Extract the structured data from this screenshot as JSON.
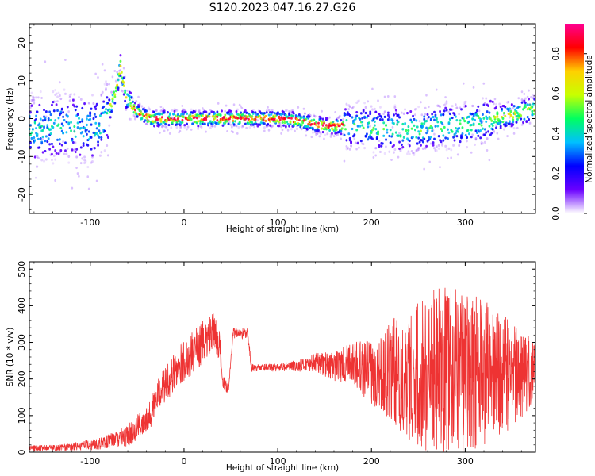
{
  "figure": {
    "title": "S120.2023.047.16.27.G26"
  },
  "chart_data": [
    {
      "type": "heatmap",
      "panel": "spectrogram",
      "xlabel": "Height of straight line (km)",
      "ylabel": "Frequency (Hz)",
      "xlim": [
        -165,
        375
      ],
      "ylim": [
        -25,
        25
      ],
      "xticks": [
        -100,
        0,
        100,
        200,
        300
      ],
      "yticks": [
        -20,
        -10,
        0,
        10,
        20
      ],
      "colorbar": {
        "label": "Normalized spectral amplitude",
        "range": [
          0.0,
          0.95
        ],
        "ticks": [
          0.0,
          0.2,
          0.4,
          0.6,
          0.8
        ],
        "colormap": [
          "#ffffff",
          "#6a00ff",
          "#0000ff",
          "#00c0ff",
          "#00ff60",
          "#c8ff00",
          "#ffd000",
          "#ff0000",
          "#ff0090"
        ]
      },
      "ridge": {
        "x": [
          -165,
          -140,
          -120,
          -100,
          -90,
          -80,
          -72,
          -68,
          -62,
          -55,
          -45,
          -35,
          -25,
          0,
          50,
          100,
          120,
          140,
          160,
          175,
          190,
          210,
          230,
          250,
          270,
          290,
          310,
          330,
          350,
          365,
          375
        ],
        "y": [
          -3,
          -2,
          -2,
          -3,
          -2,
          2,
          8,
          14,
          6,
          3,
          1,
          0,
          0,
          0,
          0,
          0,
          -0.5,
          -1.5,
          -2,
          -2,
          -2,
          -3,
          -3,
          -3,
          -2,
          -2,
          -1,
          0,
          1,
          2,
          2.5
        ]
      }
    },
    {
      "type": "line",
      "panel": "snr",
      "xlabel": "Height of straight line (km)",
      "ylabel": "SNR (10 * v/v)",
      "xlim": [
        -165,
        375
      ],
      "ylim": [
        0,
        520
      ],
      "xticks": [
        -100,
        0,
        100,
        200,
        300
      ],
      "yticks": [
        0,
        100,
        200,
        300,
        400,
        500
      ],
      "color": "#ee3333",
      "series": [
        {
          "x": [
            -165,
            -140,
            -120,
            -100,
            -80,
            -60,
            -45,
            -35,
            -25,
            -15,
            -5,
            5,
            15,
            25,
            32,
            38,
            42,
            46,
            48,
            52,
            60,
            68,
            72,
            80,
            100,
            120,
            140,
            160,
            180,
            200,
            215,
            220,
            240,
            260,
            280,
            300,
            320,
            340,
            360,
            375
          ],
          "y": [
            12,
            12,
            14,
            20,
            30,
            45,
            80,
            110,
            170,
            200,
            240,
            260,
            290,
            310,
            330,
            290,
            190,
            175,
            180,
            325,
            325,
            325,
            230,
            230,
            232,
            235,
            245,
            235,
            240,
            220,
            215,
            220,
            215,
            220,
            225,
            220,
            215,
            210,
            215,
            220
          ],
          "spread": [
            8,
            8,
            10,
            15,
            20,
            30,
            35,
            40,
            45,
            50,
            55,
            60,
            60,
            60,
            50,
            40,
            20,
            15,
            10,
            15,
            15,
            15,
            10,
            10,
            12,
            15,
            25,
            40,
            60,
            90,
            120,
            140,
            180,
            220,
            230,
            220,
            200,
            170,
            120,
            80
          ]
        }
      ]
    }
  ]
}
